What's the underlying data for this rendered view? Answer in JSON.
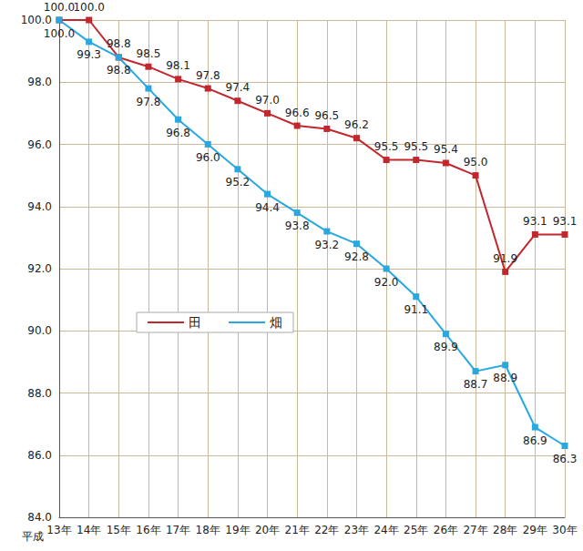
{
  "chart_data": {
    "type": "line",
    "x_label": "平成",
    "categories": [
      "13年",
      "14年",
      "15年",
      "16年",
      "17年",
      "18年",
      "19年",
      "20年",
      "21年",
      "22年",
      "23年",
      "24年",
      "25年",
      "26年",
      "27年",
      "28年",
      "29年",
      "30年"
    ],
    "series": [
      {
        "name": "田",
        "color": "#c1272d",
        "marker": "square",
        "label_position": "top",
        "values": [
          100.0,
          100.0,
          98.8,
          98.5,
          98.1,
          97.8,
          97.4,
          97.0,
          96.6,
          96.5,
          96.2,
          95.5,
          95.5,
          95.4,
          95.0,
          91.9,
          93.1,
          93.1
        ],
        "value_labels": [
          "100.0",
          "100.0",
          "98.8",
          "98.5",
          "98.1",
          "97.8",
          "97.4",
          "97.0",
          "96.6",
          "96.5",
          "96.2",
          "95.5",
          "95.5",
          "95.4",
          "95.0",
          "91.9",
          "93.1",
          "93.1"
        ]
      },
      {
        "name": "畑",
        "color": "#29a8e0",
        "marker": "square",
        "label_position": "bottom",
        "values": [
          100.0,
          99.3,
          98.8,
          97.8,
          96.8,
          96.0,
          95.2,
          94.4,
          93.8,
          93.2,
          92.8,
          92.0,
          91.1,
          89.9,
          88.7,
          88.9,
          86.9,
          86.3
        ],
        "value_labels": [
          "100.0",
          "99.3",
          "98.8",
          "97.8",
          "96.8",
          "96.0",
          "95.2",
          "94.4",
          "93.8",
          "93.2",
          "92.8",
          "92.0",
          "91.1",
          "89.9",
          "88.7",
          "88.9",
          "86.9",
          "86.3"
        ]
      }
    ],
    "ylim": [
      84,
      100
    ],
    "yticks": [
      {
        "value": 84,
        "label": "84.0"
      },
      {
        "value": 86,
        "label": "86.0"
      },
      {
        "value": 88,
        "label": "88.0"
      },
      {
        "value": 90,
        "label": "90.0"
      },
      {
        "value": 92,
        "label": "92.0"
      },
      {
        "value": 94,
        "label": "94.0"
      },
      {
        "value": 96,
        "label": "96.0"
      },
      {
        "value": 98,
        "label": "98.0"
      },
      {
        "value": 100,
        "label": "100.0"
      }
    ],
    "grid": true,
    "legend": "left",
    "data_labels": true
  }
}
